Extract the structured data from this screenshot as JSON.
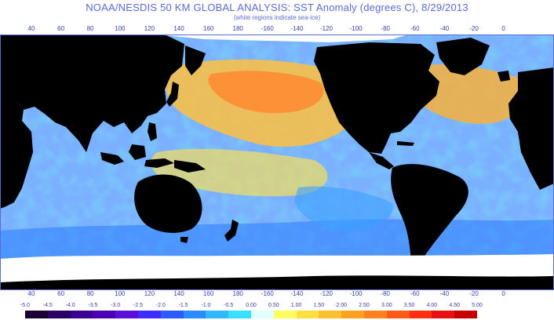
{
  "title": "NOAA/NESDIS 50 KM GLOBAL ANALYSIS: SST Anomaly (degrees C), 8/29/2013",
  "subtitle": "(white regions indicate sea-ice)",
  "longitude_labels": [
    "40",
    "60",
    "80",
    "100",
    "120",
    "140",
    "160",
    "180",
    "-160",
    "-140",
    "-120",
    "-100",
    "-80",
    "-60",
    "-40",
    "-20",
    "0"
  ],
  "legend": {
    "labels": [
      "-5.0",
      "-4.5",
      "-4.0",
      "-3.5",
      "-3.0",
      "-2.5",
      "-2.0",
      "-1.5",
      "-1.0",
      "-0.5",
      "0.00",
      "0.50",
      "1.00",
      "1.50",
      "2.00",
      "2.50",
      "3.00",
      "3.50",
      "4.00",
      "4.50",
      "5.00"
    ],
    "colors": [
      "#1a0033",
      "#2a0066",
      "#3a0090",
      "#4b00b3",
      "#5a10d8",
      "#3c2cff",
      "#2c5cff",
      "#2a8cff",
      "#30b8ff",
      "#38e0ff",
      "#e0ffff",
      "#ffff60",
      "#ffe040",
      "#ffc030",
      "#ffa020",
      "#ff8020",
      "#ff5a18",
      "#ff3010",
      "#e81010",
      "#c80000"
    ]
  },
  "map": {
    "land_color": "#000000",
    "sea_ice_color": "#ffffff",
    "ocean_base_color": "#7ab0ff"
  }
}
